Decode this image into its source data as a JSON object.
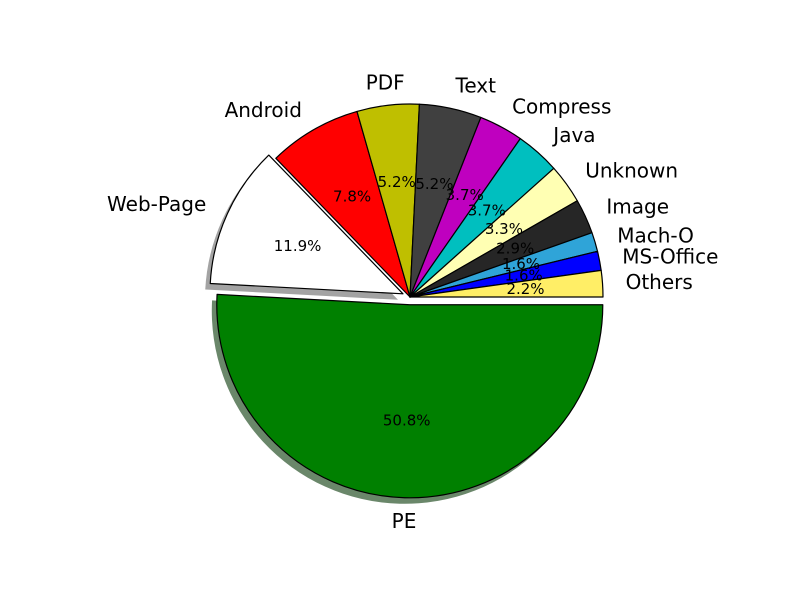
{
  "chart_data": {
    "type": "pie",
    "title": "",
    "start_angle_deg": 0,
    "direction": "clockwise",
    "slices": [
      {
        "label": "PE",
        "value": 50.8,
        "display": "50.8%",
        "color": "#008000",
        "exploded": true
      },
      {
        "label": "Web-Page",
        "value": 11.9,
        "display": "11.9%",
        "color": "#ffffff",
        "exploded": true
      },
      {
        "label": "Android",
        "value": 7.8,
        "display": "7.8%",
        "color": "#ff0000",
        "exploded": false
      },
      {
        "label": "PDF",
        "value": 5.2,
        "display": "5.2%",
        "color": "#bfbf00",
        "exploded": false
      },
      {
        "label": "Text",
        "value": 5.2,
        "display": "5.2%",
        "color": "#404040",
        "exploded": false
      },
      {
        "label": "Compress",
        "value": 3.7,
        "display": "3.7%",
        "color": "#bf00bf",
        "exploded": false
      },
      {
        "label": "Java",
        "value": 3.7,
        "display": "3.7%",
        "color": "#00bfbf",
        "exploded": false
      },
      {
        "label": "Unknown",
        "value": 3.3,
        "display": "3.3%",
        "color": "#ffffb3",
        "exploded": false
      },
      {
        "label": "Image",
        "value": 2.9,
        "display": "2.9%",
        "color": "#262626",
        "exploded": false
      },
      {
        "label": "Mach-O",
        "value": 1.6,
        "display": "1.6%",
        "color": "#2fa4d8",
        "exploded": false
      },
      {
        "label": "MS-Office",
        "value": 1.6,
        "display": "1.6%",
        "color": "#0000ff",
        "exploded": false
      },
      {
        "label": "Others",
        "value": 2.2,
        "display": "2.2%",
        "color": "#ffee66",
        "exploded": false
      }
    ]
  }
}
